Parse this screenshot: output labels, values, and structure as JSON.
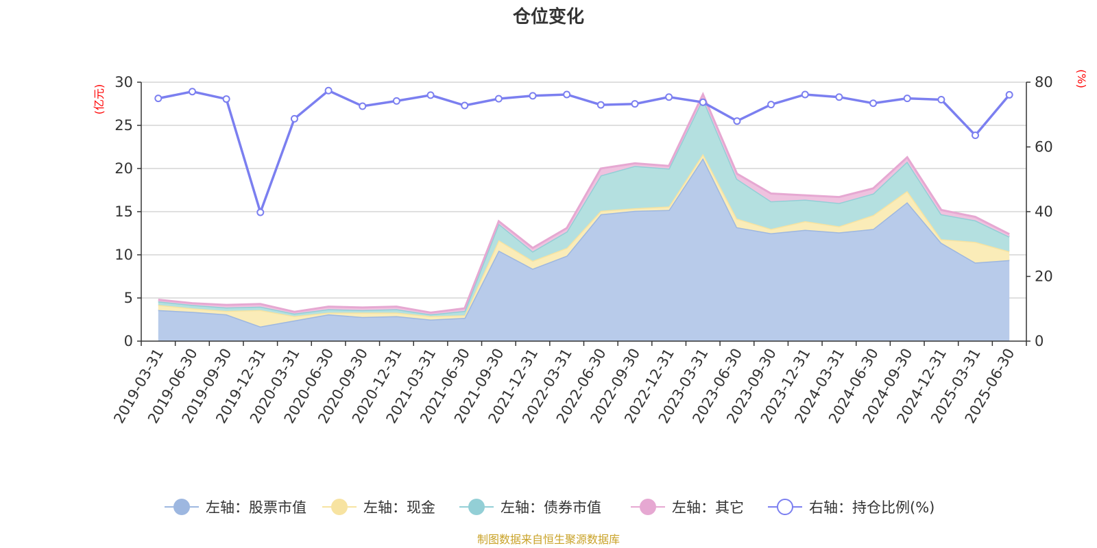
{
  "chart_data": {
    "type": "area",
    "title": "仓位变化",
    "left_unit": "(亿元)",
    "right_unit": "(%)",
    "source": "制图数据来自恒生聚源数据库",
    "left_axis": {
      "min": 0,
      "max": 30,
      "ticks": [
        0,
        5,
        10,
        15,
        20,
        25,
        30
      ]
    },
    "right_axis": {
      "min": 0,
      "max": 80,
      "ticks": [
        0,
        20,
        40,
        60,
        80
      ]
    },
    "grid": true,
    "legend_position": "bottom",
    "categories": [
      "2019-03-31",
      "2019-06-30",
      "2019-09-30",
      "2019-12-31",
      "2020-03-31",
      "2020-06-30",
      "2020-09-30",
      "2020-12-31",
      "2021-03-31",
      "2021-06-30",
      "2021-09-30",
      "2021-12-31",
      "2022-03-31",
      "2022-06-30",
      "2022-09-30",
      "2022-12-31",
      "2023-03-31",
      "2023-06-30",
      "2023-09-30",
      "2023-12-31",
      "2024-03-31",
      "2024-06-30",
      "2024-09-30",
      "2024-12-31",
      "2025-03-31",
      "2025-06-30"
    ],
    "series": [
      {
        "name": "左轴：股票市值",
        "axis": "left",
        "stack": true,
        "color": "#9db7e0",
        "fill": "#b8cbea",
        "values": [
          3.6,
          3.4,
          3.1,
          1.7,
          2.4,
          3.1,
          2.8,
          2.9,
          2.5,
          2.7,
          10.5,
          8.4,
          9.9,
          14.7,
          15.1,
          15.2,
          21.2,
          13.2,
          12.5,
          12.9,
          12.6,
          13.0,
          16.1,
          11.4,
          9.1,
          9.4
        ]
      },
      {
        "name": "左轴：现金",
        "axis": "left",
        "stack": true,
        "color": "#f7e3a1",
        "fill": "#faecb8",
        "values": [
          0.6,
          0.4,
          0.4,
          1.9,
          0.5,
          0.2,
          0.5,
          0.4,
          0.4,
          0.3,
          1.2,
          0.9,
          0.9,
          0.4,
          0.3,
          0.4,
          0.5,
          1.0,
          0.5,
          1.0,
          0.7,
          1.6,
          1.3,
          0.4,
          2.4,
          1.0
        ]
      },
      {
        "name": "左轴：债券市值",
        "axis": "left",
        "stack": true,
        "color": "#93cfd6",
        "fill": "#b4e0e0",
        "values": [
          0.4,
          0.4,
          0.4,
          0.4,
          0.3,
          0.4,
          0.3,
          0.4,
          0.2,
          0.5,
          1.9,
          1.1,
          1.9,
          4.1,
          4.9,
          4.4,
          6.4,
          4.6,
          3.2,
          2.5,
          2.7,
          2.5,
          3.4,
          2.9,
          2.5,
          1.7
        ]
      },
      {
        "name": "左轴：其它",
        "axis": "left",
        "stack": true,
        "color": "#e6a8d2",
        "fill": "#efc2df",
        "values": [
          0.2,
          0.2,
          0.3,
          0.3,
          0.2,
          0.3,
          0.3,
          0.3,
          0.2,
          0.3,
          0.3,
          0.4,
          0.4,
          0.8,
          0.3,
          0.3,
          0.5,
          0.6,
          0.9,
          0.5,
          0.7,
          0.6,
          0.5,
          0.5,
          0.4,
          0.3
        ]
      },
      {
        "name": "右轴：持仓比例(%)",
        "axis": "right",
        "type": "line",
        "color": "#7b7ff0",
        "values": [
          75.0,
          77.1,
          74.8,
          39.8,
          68.7,
          77.4,
          72.6,
          74.2,
          76.0,
          72.8,
          74.9,
          75.8,
          76.2,
          73.0,
          73.3,
          75.4,
          73.8,
          68.0,
          73.1,
          76.2,
          75.4,
          73.5,
          75.0,
          74.6,
          63.6,
          76.1
        ]
      }
    ]
  }
}
